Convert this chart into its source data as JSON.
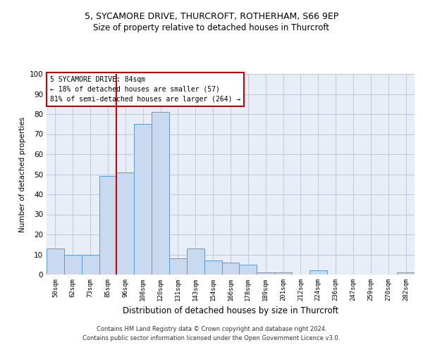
{
  "title1": "5, SYCAMORE DRIVE, THURCROFT, ROTHERHAM, S66 9EP",
  "title2": "Size of property relative to detached houses in Thurcroft",
  "xlabel": "Distribution of detached houses by size in Thurcroft",
  "ylabel": "Number of detached properties",
  "footer1": "Contains HM Land Registry data © Crown copyright and database right 2024.",
  "footer2": "Contains public sector information licensed under the Open Government Licence v3.0.",
  "annotation_title": "5 SYCAMORE DRIVE: 84sqm",
  "annotation_line1": "← 18% of detached houses are smaller (57)",
  "annotation_line2": "81% of semi-detached houses are larger (264) →",
  "bin_labels": [
    "50sqm",
    "62sqm",
    "73sqm",
    "85sqm",
    "96sqm",
    "108sqm",
    "120sqm",
    "131sqm",
    "143sqm",
    "154sqm",
    "166sqm",
    "178sqm",
    "189sqm",
    "201sqm",
    "212sqm",
    "224sqm",
    "236sqm",
    "247sqm",
    "259sqm",
    "270sqm",
    "282sqm"
  ],
  "bar_values": [
    13,
    10,
    10,
    49,
    51,
    75,
    81,
    8,
    13,
    7,
    6,
    5,
    1,
    1,
    0,
    2,
    0,
    0,
    0,
    0,
    1
  ],
  "bar_color": "#c9d9f0",
  "bar_edge_color": "#5b9bd5",
  "vline_x": 3.5,
  "vline_color": "#cc0000",
  "bg_color": "#ffffff",
  "plot_bg_color": "#e8eef8",
  "grid_color": "#c0c8d8",
  "annotation_box_color": "#ffffff",
  "annotation_box_edge": "#cc0000",
  "ylim": [
    0,
    100
  ],
  "yticks": [
    0,
    10,
    20,
    30,
    40,
    50,
    60,
    70,
    80,
    90,
    100
  ],
  "title1_fontsize": 9,
  "title2_fontsize": 8.5,
  "ylabel_fontsize": 7.5,
  "xlabel_fontsize": 8.5,
  "xtick_fontsize": 6.5,
  "ytick_fontsize": 7.5,
  "ann_fontsize": 7,
  "footer_fontsize": 6
}
